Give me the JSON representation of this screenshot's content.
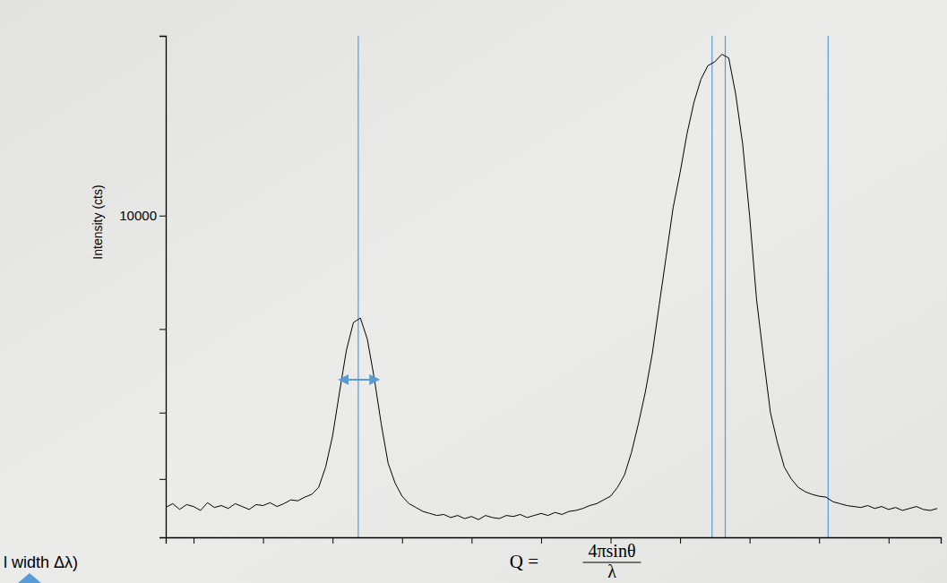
{
  "chart_data": {
    "type": "line",
    "color": "#000000",
    "log": "y",
    "grid": false,
    "tick_labels": "y",
    "ylabel": "Intensity (cts)",
    "xlabel": {
      "lhs": "Q =",
      "numerator": "4πsinθ",
      "denominator": "λ"
    },
    "annotations": [
      "l width Δλ)"
    ],
    "xlim": [
      0.6,
      11.75
    ],
    "xticks": [
      1,
      2,
      3,
      4,
      5,
      6,
      7,
      8,
      9,
      10,
      11
    ],
    "ylim": [
      1400,
      30000
    ],
    "yticks": [
      {
        "value": 30000,
        "label": null
      },
      10000,
      {
        "value": 5000,
        "label": null
      },
      {
        "value": 3000,
        "label": null
      },
      {
        "value": 2000,
        "label": null
      }
    ],
    "vlines": [
      3.37,
      8.46,
      8.65,
      10.13
    ],
    "width_arrow": {
      "x": [
        3.09,
        3.67
      ],
      "y": 3670
    },
    "x": [
      0.6,
      0.7,
      0.8,
      0.9,
      1.0,
      1.1,
      1.2,
      1.3,
      1.4,
      1.5,
      1.6,
      1.7,
      1.8,
      1.9,
      2.0,
      2.1,
      2.2,
      2.3,
      2.4,
      2.5,
      2.6,
      2.7,
      2.8,
      2.9,
      3.0,
      3.1,
      3.2,
      3.3,
      3.4,
      3.5,
      3.6,
      3.7,
      3.8,
      3.9,
      4.0,
      4.1,
      4.2,
      4.3,
      4.4,
      4.5,
      4.6,
      4.7,
      4.8,
      4.9,
      5.0,
      5.1,
      5.2,
      5.3,
      5.4,
      5.5,
      5.6,
      5.7,
      5.8,
      5.9,
      6.0,
      6.1,
      6.2,
      6.3,
      6.4,
      6.5,
      6.6,
      6.7,
      6.8,
      6.9,
      7.0,
      7.1,
      7.2,
      7.3,
      7.4,
      7.5,
      7.6,
      7.7,
      7.8,
      7.9,
      8.0,
      8.1,
      8.2,
      8.3,
      8.4,
      8.5,
      8.6,
      8.7,
      8.8,
      8.9,
      9.0,
      9.1,
      9.2,
      9.3,
      9.4,
      9.5,
      9.6,
      9.7,
      9.8,
      9.9,
      10.0,
      10.1,
      10.2,
      10.3,
      10.4,
      10.5,
      10.6,
      10.7,
      10.8,
      10.9,
      11.0,
      11.1,
      11.2,
      11.3,
      11.4,
      11.5,
      11.6,
      11.7
    ],
    "values": [
      1680,
      1720,
      1660,
      1710,
      1690,
      1650,
      1730,
      1680,
      1700,
      1670,
      1720,
      1690,
      1660,
      1710,
      1700,
      1730,
      1690,
      1720,
      1760,
      1750,
      1790,
      1820,
      1900,
      2150,
      2600,
      3400,
      4400,
      5200,
      5350,
      4700,
      3700,
      2800,
      2200,
      1950,
      1800,
      1720,
      1680,
      1640,
      1620,
      1600,
      1610,
      1580,
      1600,
      1570,
      1590,
      1560,
      1600,
      1580,
      1570,
      1600,
      1590,
      1610,
      1580,
      1600,
      1620,
      1600,
      1630,
      1610,
      1640,
      1650,
      1670,
      1700,
      1720,
      1760,
      1800,
      1900,
      2050,
      2350,
      2800,
      3400,
      4300,
      5800,
      7800,
      10500,
      13000,
      16500,
      20000,
      23000,
      25000,
      25600,
      26800,
      26200,
      21000,
      15500,
      10000,
      6000,
      4200,
      3000,
      2500,
      2150,
      2000,
      1900,
      1850,
      1820,
      1800,
      1790,
      1740,
      1720,
      1700,
      1690,
      1680,
      1700,
      1670,
      1690,
      1660,
      1680,
      1650,
      1670,
      1690,
      1660,
      1650,
      1670
    ]
  }
}
